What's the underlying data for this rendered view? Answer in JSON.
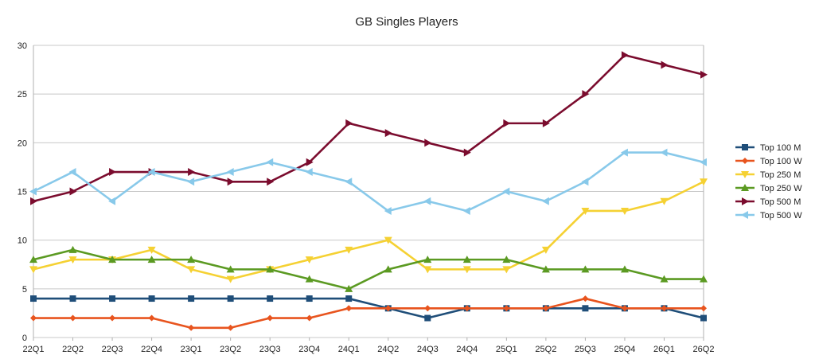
{
  "chart_data": {
    "type": "line",
    "title": "GB Singles Players",
    "xlabel": "",
    "ylabel": "",
    "categories": [
      "22Q1",
      "22Q2",
      "22Q3",
      "22Q4",
      "23Q1",
      "23Q2",
      "23Q3",
      "23Q4",
      "24Q1",
      "24Q2",
      "24Q3",
      "24Q4",
      "25Q1",
      "25Q2",
      "25Q3",
      "25Q4",
      "26Q1",
      "26Q2"
    ],
    "ylim": [
      0,
      30
    ],
    "yticks": [
      0,
      5,
      10,
      15,
      20,
      25,
      30
    ],
    "grid": "horizontal",
    "legend": "right",
    "series": [
      {
        "name": "Top 100 M",
        "color": "#1f4e79",
        "marker": "square",
        "values": [
          4,
          4,
          4,
          4,
          4,
          4,
          4,
          4,
          4,
          3,
          2,
          3,
          3,
          3,
          3,
          3,
          3,
          2
        ]
      },
      {
        "name": "Top 100 W",
        "color": "#e8541e",
        "marker": "diamond",
        "values": [
          2,
          2,
          2,
          2,
          1,
          1,
          2,
          2,
          3,
          3,
          3,
          3,
          3,
          3,
          4,
          3,
          3,
          3
        ]
      },
      {
        "name": "Top 250 M",
        "color": "#f5d133",
        "marker": "triangle-down",
        "values": [
          7,
          8,
          8,
          9,
          7,
          6,
          7,
          8,
          9,
          10,
          7,
          7,
          7,
          9,
          13,
          13,
          14,
          16
        ]
      },
      {
        "name": "Top 250 W",
        "color": "#5b9a22",
        "marker": "triangle-up",
        "values": [
          8,
          9,
          8,
          8,
          8,
          7,
          7,
          6,
          5,
          7,
          8,
          8,
          8,
          7,
          7,
          7,
          6,
          6
        ]
      },
      {
        "name": "Top 500 M",
        "color": "#7b0c2e",
        "marker": "triangle-right",
        "values": [
          14,
          15,
          17,
          17,
          17,
          16,
          16,
          18,
          22,
          21,
          20,
          19,
          22,
          22,
          25,
          29,
          28,
          27
        ]
      },
      {
        "name": "Top 500 W",
        "color": "#88c9ea",
        "marker": "triangle-left",
        "values": [
          15,
          17,
          14,
          17,
          16,
          17,
          18,
          17,
          16,
          13,
          14,
          13,
          15,
          14,
          16,
          19,
          19,
          18
        ]
      }
    ]
  }
}
